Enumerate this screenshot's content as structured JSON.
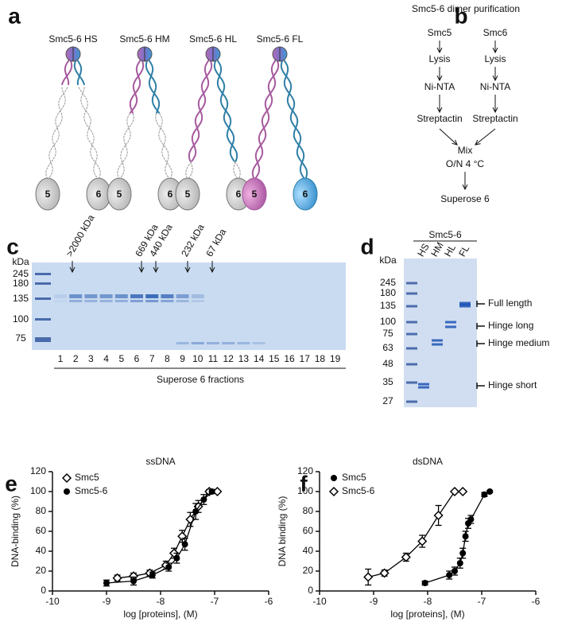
{
  "panel_labels": [
    "a",
    "b",
    "c",
    "d",
    "e",
    "f"
  ],
  "panel_a": {
    "complexes": [
      {
        "name": "Smc5-6 HS",
        "subunits": [
          "5",
          "6"
        ]
      },
      {
        "name": "Smc5-6 HM",
        "subunits": [
          "5",
          "6"
        ]
      },
      {
        "name": "Smc5-6 HL",
        "subunits": [
          "5",
          "6"
        ]
      },
      {
        "name": "Smc5-6 FL",
        "subunits": [
          "5",
          "6"
        ]
      }
    ]
  },
  "panel_b": {
    "title": "Smc5-6 dimer purification",
    "left": [
      "Smc5",
      "Lysis",
      "Ni-NTA",
      "Streptactin"
    ],
    "right": [
      "Smc6",
      "Lysis",
      "Ni-NTA",
      "Streptactin"
    ],
    "mix": "Mix",
    "condition": "O/N  4 °C",
    "final": "Superose 6"
  },
  "panel_c": {
    "unit": "kDa",
    "ladder": [
      "245",
      "180",
      "135",
      "100",
      "75"
    ],
    "markers": [
      ">2000 kDa",
      "669 kDa",
      "440 kDa",
      "232 kDa",
      "67 kDa"
    ],
    "fractions": [
      "1",
      "2",
      "3",
      "4",
      "5",
      "6",
      "7",
      "8",
      "9",
      "10",
      "11",
      "12",
      "13",
      "14",
      "15",
      "16",
      "17",
      "18",
      "19"
    ],
    "xlabel": "Superose 6 fractions"
  },
  "panel_d": {
    "group": "Smc5-6",
    "lanes": [
      "HS",
      "HM",
      "HL",
      "FL"
    ],
    "unit": "kDa",
    "ladder": [
      "245",
      "180",
      "135",
      "100",
      "75",
      "63",
      "48",
      "35",
      "27"
    ],
    "bands": [
      "Full length",
      "Hinge long",
      "Hinge medium",
      "Hinge short"
    ]
  },
  "chart_data": [
    {
      "type": "scatter",
      "title": "ssDNA",
      "xlabel": "log [proteins], (M)",
      "ylabel": "DNA-binding (%)",
      "xlim": [
        -10,
        -6
      ],
      "xticks": [
        -10,
        -9,
        -8,
        -7,
        -6
      ],
      "ylim": [
        0,
        120
      ],
      "yticks": [
        0,
        20,
        40,
        60,
        80,
        100,
        120
      ],
      "legend": "upper left",
      "series": [
        {
          "name": "Smc5",
          "marker": "diamond-open",
          "color": "#000000",
          "x": [
            -8.8,
            -8.5,
            -8.2,
            -7.9,
            -7.75,
            -7.6,
            -7.45,
            -7.3,
            -7.1,
            -6.95
          ],
          "values": [
            13,
            15,
            18,
            26,
            38,
            55,
            72,
            85,
            100,
            100
          ],
          "errors": [
            3,
            3,
            3,
            4,
            5,
            6,
            7,
            6,
            2,
            1
          ]
        },
        {
          "name": "Smc5-6",
          "marker": "circle",
          "color": "#000000",
          "x": [
            -9,
            -8.5,
            -8.15,
            -7.85,
            -7.7,
            -7.55,
            -7.35,
            -7.2,
            -7.05
          ],
          "values": [
            8,
            10,
            16,
            24,
            33,
            47,
            80,
            92,
            100
          ],
          "errors": [
            3,
            4,
            3,
            4,
            5,
            6,
            8,
            5,
            2
          ]
        }
      ]
    },
    {
      "type": "scatter",
      "title": "dsDNA",
      "xlabel": "log [proteins], (M)",
      "ylabel": "DNA binding (%)",
      "xlim": [
        -10,
        -6
      ],
      "xticks": [
        -10,
        -9,
        -8,
        -7,
        -6
      ],
      "ylim": [
        0,
        120
      ],
      "yticks": [
        0,
        20,
        40,
        60,
        80,
        100,
        120
      ],
      "legend": "upper left",
      "series": [
        {
          "name": "Smc5",
          "marker": "circle",
          "color": "#000000",
          "x": [
            -8.05,
            -7.6,
            -7.5,
            -7.4,
            -7.35,
            -7.3,
            -7.25,
            -7.2,
            -6.95,
            -6.85
          ],
          "values": [
            8,
            16,
            20,
            28,
            38,
            55,
            68,
            72,
            97,
            100
          ],
          "errors": [
            2,
            4,
            4,
            5,
            5,
            5,
            5,
            4,
            2,
            1
          ]
        },
        {
          "name": "Smc5-6",
          "marker": "diamond-open",
          "color": "#000000",
          "x": [
            -9.1,
            -8.8,
            -8.4,
            -8.1,
            -7.8,
            -7.5,
            -7.35
          ],
          "values": [
            14,
            18,
            34,
            50,
            76,
            100,
            100
          ],
          "errors": [
            8,
            3,
            4,
            6,
            10,
            1,
            1
          ]
        }
      ]
    }
  ]
}
